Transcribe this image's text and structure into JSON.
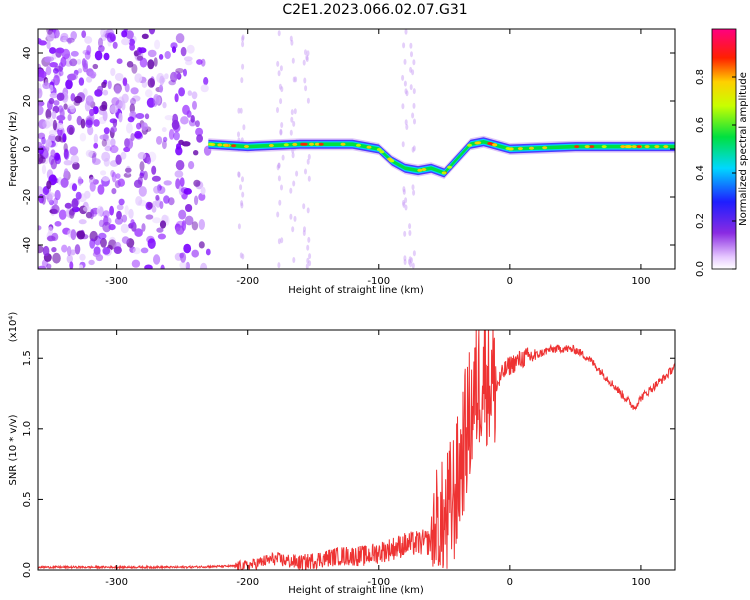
{
  "title": "C2E1.2023.066.02.07.G31",
  "chart_data": [
    {
      "type": "heatmap",
      "xlabel": "Height of straight line (km)",
      "ylabel": "Frequency (Hz)",
      "xlim": [
        -360,
        126
      ],
      "ylim": [
        -50,
        50
      ],
      "xticks": [
        -300,
        -200,
        -100,
        0,
        100
      ],
      "xtick_labels": [
        "-300",
        "-200",
        "-100",
        "0",
        "100"
      ],
      "yticks": [
        -40,
        -20,
        0,
        20,
        40
      ],
      "ytick_labels": [
        "-40",
        "-20",
        "0",
        "20",
        "40"
      ],
      "colorbar": {
        "label": "Normalized spectral amplitude",
        "range": [
          0,
          1
        ],
        "ticks": [
          0.0,
          0.2,
          0.4,
          0.6,
          0.8
        ],
        "tick_labels": [
          "0.0",
          "0.2",
          "0.4",
          "0.6",
          "0.8"
        ],
        "colormap": "rainbow (white-purple-blue-cyan-green-yellow-red-magenta)"
      },
      "ridge": {
        "description": "Narrow high-amplitude band near 0 Hz from about -230 km to the right edge, dipping toward -10 Hz between about -90 and -40 km",
        "x": [
          -230,
          -200,
          -160,
          -120,
          -100,
          -90,
          -80,
          -70,
          -60,
          -50,
          -40,
          -30,
          -20,
          0,
          50,
          100,
          126
        ],
        "y": [
          2,
          1,
          2,
          2,
          0,
          -5,
          -8,
          -9,
          -8,
          -10,
          -4,
          2,
          3,
          0,
          1,
          1,
          1
        ]
      },
      "noise_region_x": [
        -360,
        -230
      ]
    },
    {
      "type": "line",
      "xlabel": "Height of straight line (km)",
      "ylabel": "SNR (10 * v/v)",
      "y_multiplier": "(x10⁴)",
      "xlim": [
        -360,
        126
      ],
      "ylim": [
        0,
        1.7
      ],
      "xticks": [
        -300,
        -200,
        -100,
        0,
        100
      ],
      "xtick_labels": [
        "-300",
        "-200",
        "-100",
        "0",
        "100"
      ],
      "yticks": [
        0.0,
        0.5,
        1.0,
        1.5
      ],
      "ytick_labels": [
        "0.0",
        "0.5",
        "1.0",
        "1.5"
      ],
      "series": [
        {
          "color": "#ee3333",
          "x": [
            -360,
            -300,
            -250,
            -200,
            -180,
            -160,
            -130,
            -110,
            -90,
            -80,
            -60,
            -50,
            -40,
            -35,
            -30,
            -25,
            -20,
            -15,
            -10,
            -5,
            0,
            10,
            20,
            30,
            40,
            50,
            60,
            70,
            80,
            90,
            95,
            100,
            110,
            120,
            126
          ],
          "y": [
            0.02,
            0.02,
            0.02,
            0.03,
            0.08,
            0.05,
            0.1,
            0.1,
            0.15,
            0.18,
            0.2,
            0.3,
            0.6,
            0.9,
            1.1,
            1.3,
            1.4,
            1.35,
            1.3,
            1.4,
            1.45,
            1.5,
            1.52,
            1.56,
            1.57,
            1.56,
            1.5,
            1.4,
            1.3,
            1.2,
            1.15,
            1.22,
            1.3,
            1.38,
            1.45
          ]
        }
      ]
    }
  ]
}
